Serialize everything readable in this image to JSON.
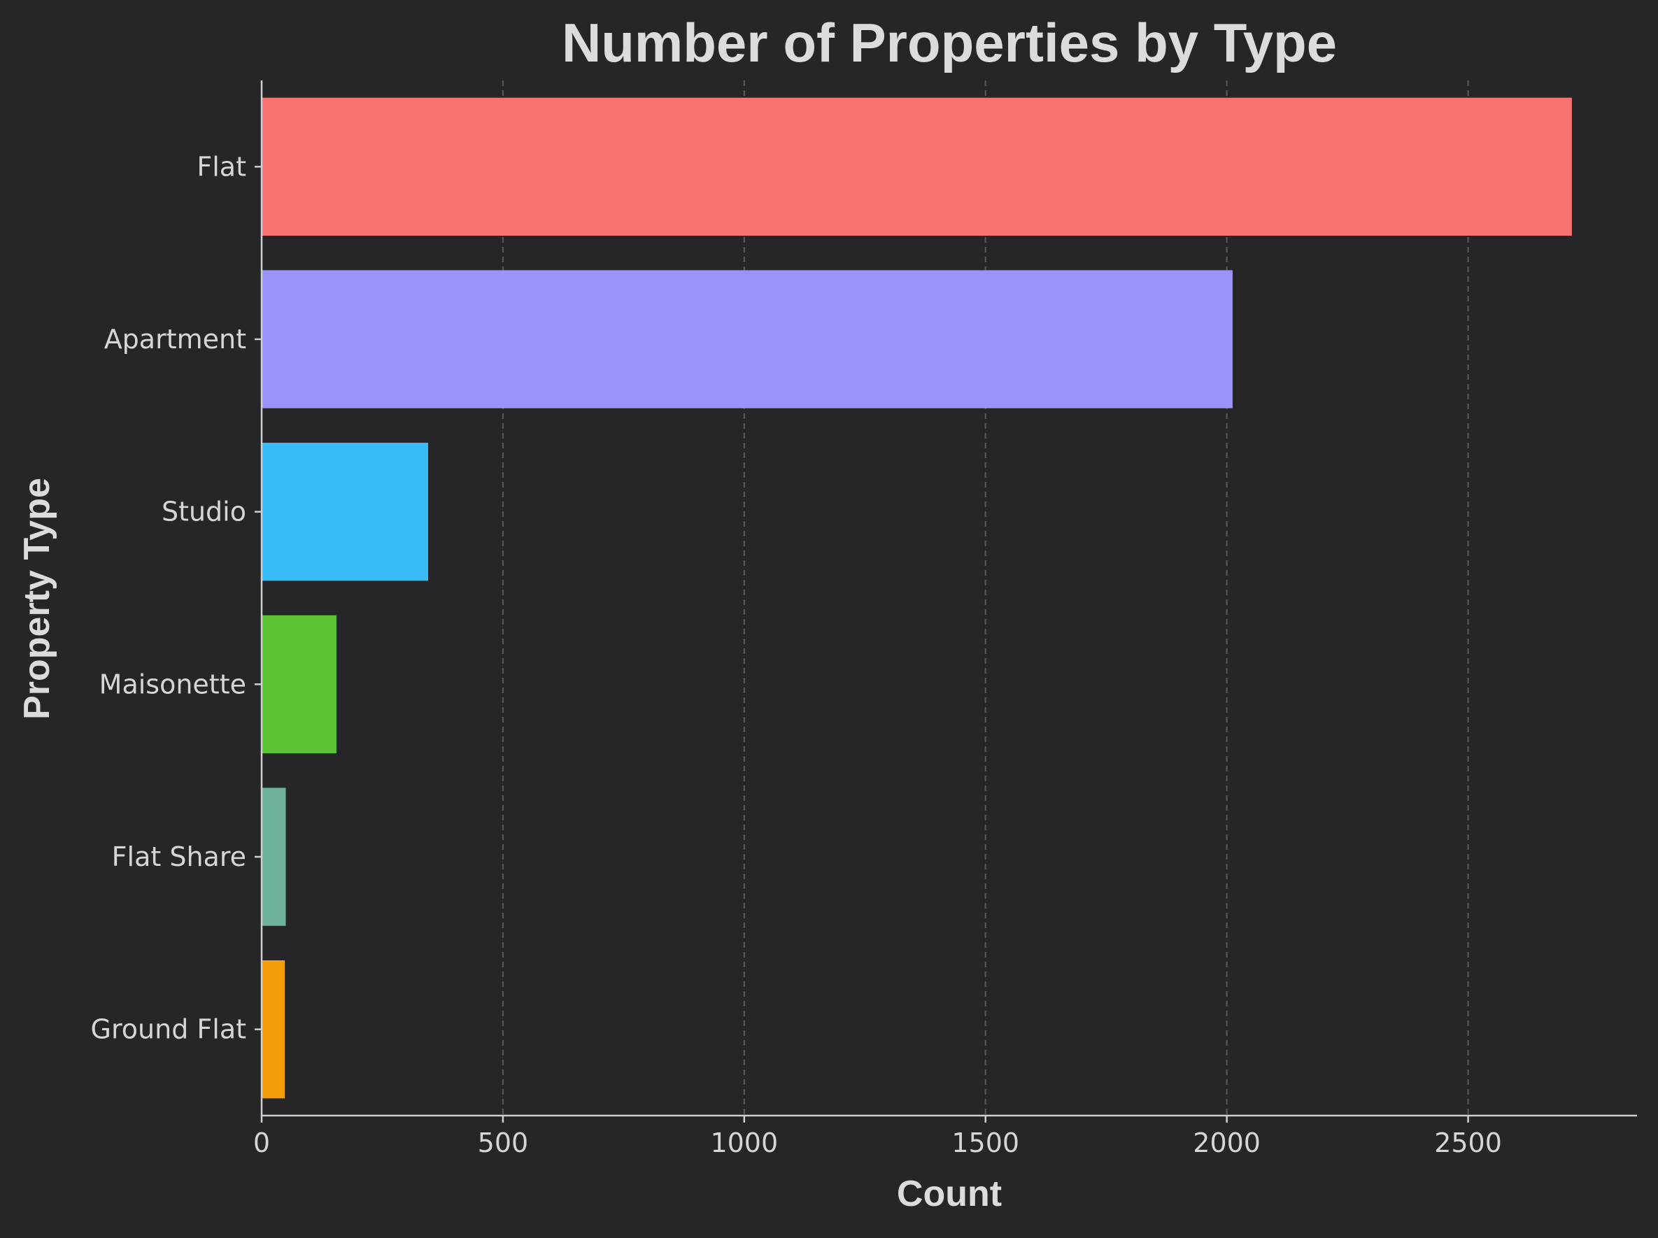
{
  "chart_data": {
    "type": "bar",
    "orientation": "horizontal",
    "title": "Number of Properties by Type",
    "xlabel": "Count",
    "ylabel": "Property Type",
    "categories": [
      "Flat",
      "Apartment",
      "Studio",
      "Maisonette",
      "Flat Share",
      "Ground Flat"
    ],
    "values": [
      2715,
      2012,
      345,
      155,
      50,
      48
    ],
    "colors": [
      "#f87272",
      "#9a94fa",
      "#38bdf8",
      "#5dc437",
      "#6fb39c",
      "#f59e0b"
    ],
    "xlim": [
      0,
      2850
    ],
    "xticks": [
      0,
      500,
      1000,
      1500,
      2000,
      2500
    ],
    "grid": "x-dashed",
    "legend": "none"
  },
  "theme": {
    "background": "#262629",
    "text": "#dcdcdc",
    "axis": "#d0d0d0",
    "grid": "#5c5c60"
  }
}
